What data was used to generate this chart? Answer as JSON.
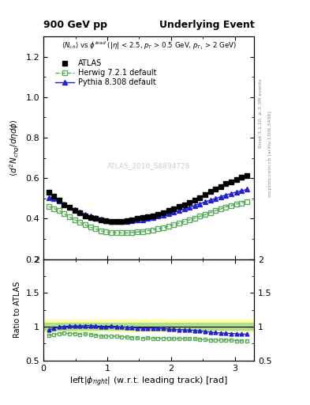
{
  "title_left": "900 GeV pp",
  "title_right": "Underlying Event",
  "ylabel_main": "\\langle d^2 N_{chg}/d\\eta d\\phi \\rangle",
  "ylabel_ratio": "Ratio to ATLAS",
  "xlabel": "left|\\phi_{right}| (w.r.t. leading track) [rad]",
  "watermark": "ATLAS_2010_S8894728",
  "ylim_main": [
    0.2,
    1.3
  ],
  "ylim_ratio": [
    0.5,
    2.0
  ],
  "xlim": [
    0.0,
    3.3
  ],
  "atlas_x": [
    0.0816,
    0.1634,
    0.2449,
    0.3267,
    0.4082,
    0.4898,
    0.5714,
    0.6531,
    0.7347,
    0.8163,
    0.898,
    0.9796,
    1.0612,
    1.1429,
    1.2245,
    1.3061,
    1.3878,
    1.4694,
    1.551,
    1.6327,
    1.7143,
    1.7959,
    1.8776,
    1.9592,
    2.0408,
    2.1224,
    2.2041,
    2.2857,
    2.3673,
    2.449,
    2.5306,
    2.6122,
    2.6939,
    2.7755,
    2.8571,
    2.9388,
    3.0204,
    3.102,
    3.1837
  ],
  "atlas_y": [
    0.53,
    0.51,
    0.49,
    0.47,
    0.455,
    0.44,
    0.43,
    0.415,
    0.405,
    0.4,
    0.395,
    0.39,
    0.385,
    0.385,
    0.388,
    0.39,
    0.395,
    0.4,
    0.405,
    0.408,
    0.415,
    0.422,
    0.43,
    0.44,
    0.45,
    0.46,
    0.47,
    0.48,
    0.492,
    0.505,
    0.52,
    0.535,
    0.548,
    0.56,
    0.572,
    0.582,
    0.595,
    0.605,
    0.612
  ],
  "herwig_x": [
    0.0816,
    0.1634,
    0.2449,
    0.3267,
    0.4082,
    0.4898,
    0.5714,
    0.6531,
    0.7347,
    0.8163,
    0.898,
    0.9796,
    1.0612,
    1.1429,
    1.2245,
    1.3061,
    1.3878,
    1.4694,
    1.551,
    1.6327,
    1.7143,
    1.7959,
    1.8776,
    1.9592,
    2.0408,
    2.1224,
    2.2041,
    2.2857,
    2.3673,
    2.449,
    2.5306,
    2.6122,
    2.6939,
    2.7755,
    2.8571,
    2.9388,
    3.0204,
    3.102,
    3.1837
  ],
  "herwig_y": [
    0.46,
    0.45,
    0.44,
    0.425,
    0.408,
    0.395,
    0.382,
    0.37,
    0.358,
    0.35,
    0.34,
    0.335,
    0.332,
    0.33,
    0.33,
    0.33,
    0.332,
    0.334,
    0.336,
    0.34,
    0.344,
    0.35,
    0.356,
    0.363,
    0.37,
    0.378,
    0.386,
    0.394,
    0.403,
    0.412,
    0.42,
    0.43,
    0.44,
    0.448,
    0.458,
    0.465,
    0.472,
    0.478,
    0.485
  ],
  "pythia_x": [
    0.0816,
    0.1634,
    0.2449,
    0.3267,
    0.4082,
    0.4898,
    0.5714,
    0.6531,
    0.7347,
    0.8163,
    0.898,
    0.9796,
    1.0612,
    1.1429,
    1.2245,
    1.3061,
    1.3878,
    1.4694,
    1.551,
    1.6327,
    1.7143,
    1.7959,
    1.8776,
    1.9592,
    2.0408,
    2.1224,
    2.2041,
    2.2857,
    2.3673,
    2.449,
    2.5306,
    2.6122,
    2.6939,
    2.7755,
    2.8571,
    2.9388,
    3.0204,
    3.102,
    3.1837
  ],
  "pythia_y": [
    0.505,
    0.498,
    0.488,
    0.472,
    0.458,
    0.446,
    0.434,
    0.422,
    0.412,
    0.404,
    0.397,
    0.392,
    0.388,
    0.386,
    0.386,
    0.387,
    0.39,
    0.393,
    0.396,
    0.4,
    0.406,
    0.412,
    0.418,
    0.425,
    0.432,
    0.44,
    0.448,
    0.456,
    0.465,
    0.474,
    0.483,
    0.492,
    0.5,
    0.508,
    0.517,
    0.524,
    0.532,
    0.538,
    0.545
  ],
  "atlas_color": "black",
  "herwig_color": "#5aaa5a",
  "pythia_color": "#2222cc",
  "band_outer": "#ffffaa",
  "band_inner": "#aadd88",
  "legend_labels": [
    "ATLAS",
    "Herwig 7.2.1 default",
    "Pythia 8.308 default"
  ]
}
